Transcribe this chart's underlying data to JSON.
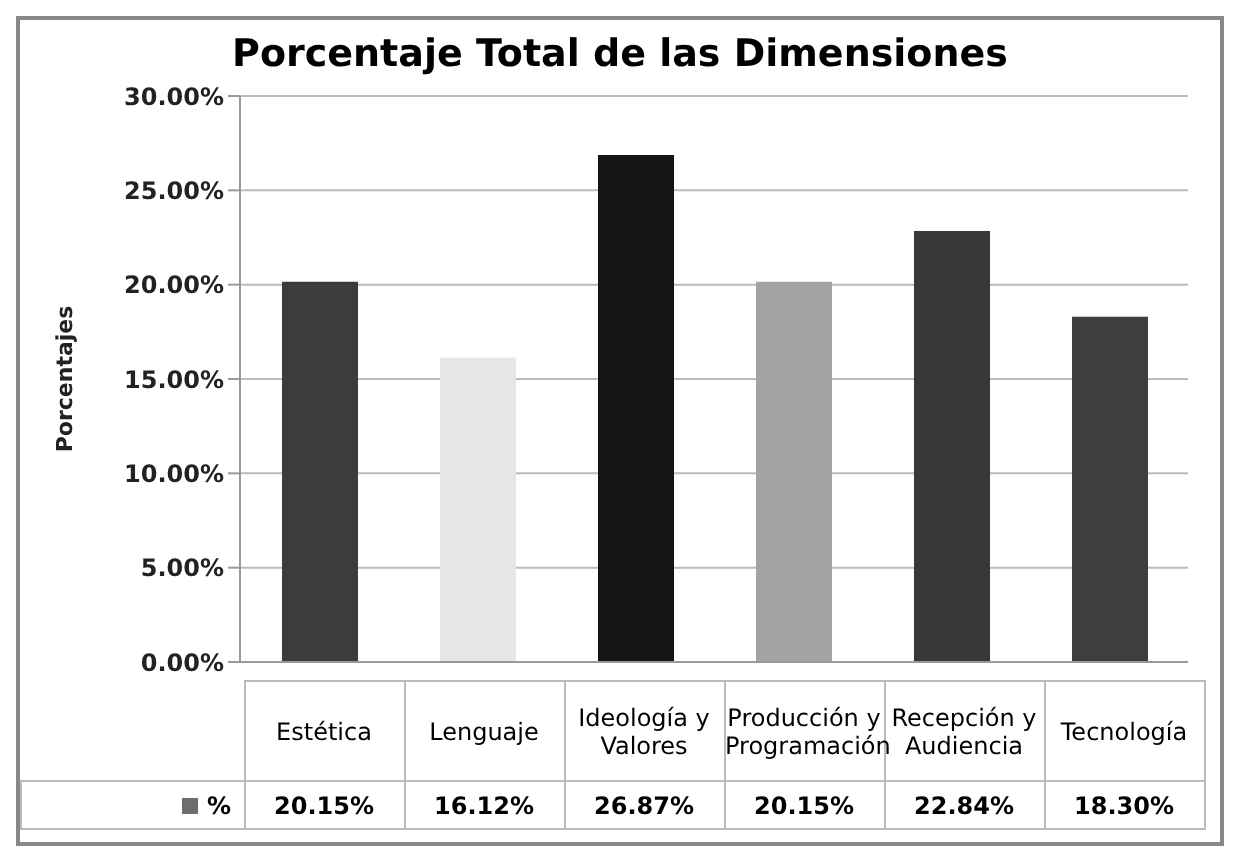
{
  "chart_data": {
    "type": "bar",
    "title": "Porcentaje Total de las Dimensiones",
    "ylabel": "Porcentajes",
    "categories": [
      "Estética",
      "Lenguaje",
      "Ideología y Valores",
      "Producción y Programación",
      "Recepción y Audiencia",
      "Tecnología"
    ],
    "series": [
      {
        "name": "%",
        "color": "#6e6e6e",
        "colors": [
          "#3c3c3c",
          "#e6e6e6",
          "#141414",
          "#a3a3a3",
          "#383838",
          "#3e3e3e"
        ],
        "values": [
          20.15,
          16.12,
          26.87,
          20.15,
          22.84,
          18.3
        ],
        "value_labels": [
          "20.15%",
          "16.12%",
          "26.87%",
          "20.15%",
          "22.84%",
          "18.30%"
        ]
      }
    ],
    "ylim": [
      0,
      30
    ],
    "yticks": [
      {
        "value": 0,
        "label": "0.00%"
      },
      {
        "value": 5,
        "label": "5.00%"
      },
      {
        "value": 10,
        "label": "10.00%"
      },
      {
        "value": 15,
        "label": "15.00%"
      },
      {
        "value": 20,
        "label": "20.00%"
      },
      {
        "value": 25,
        "label": "25.00%"
      },
      {
        "value": 30,
        "label": "30.00%"
      }
    ],
    "grid": "y",
    "legend": "bottom"
  }
}
